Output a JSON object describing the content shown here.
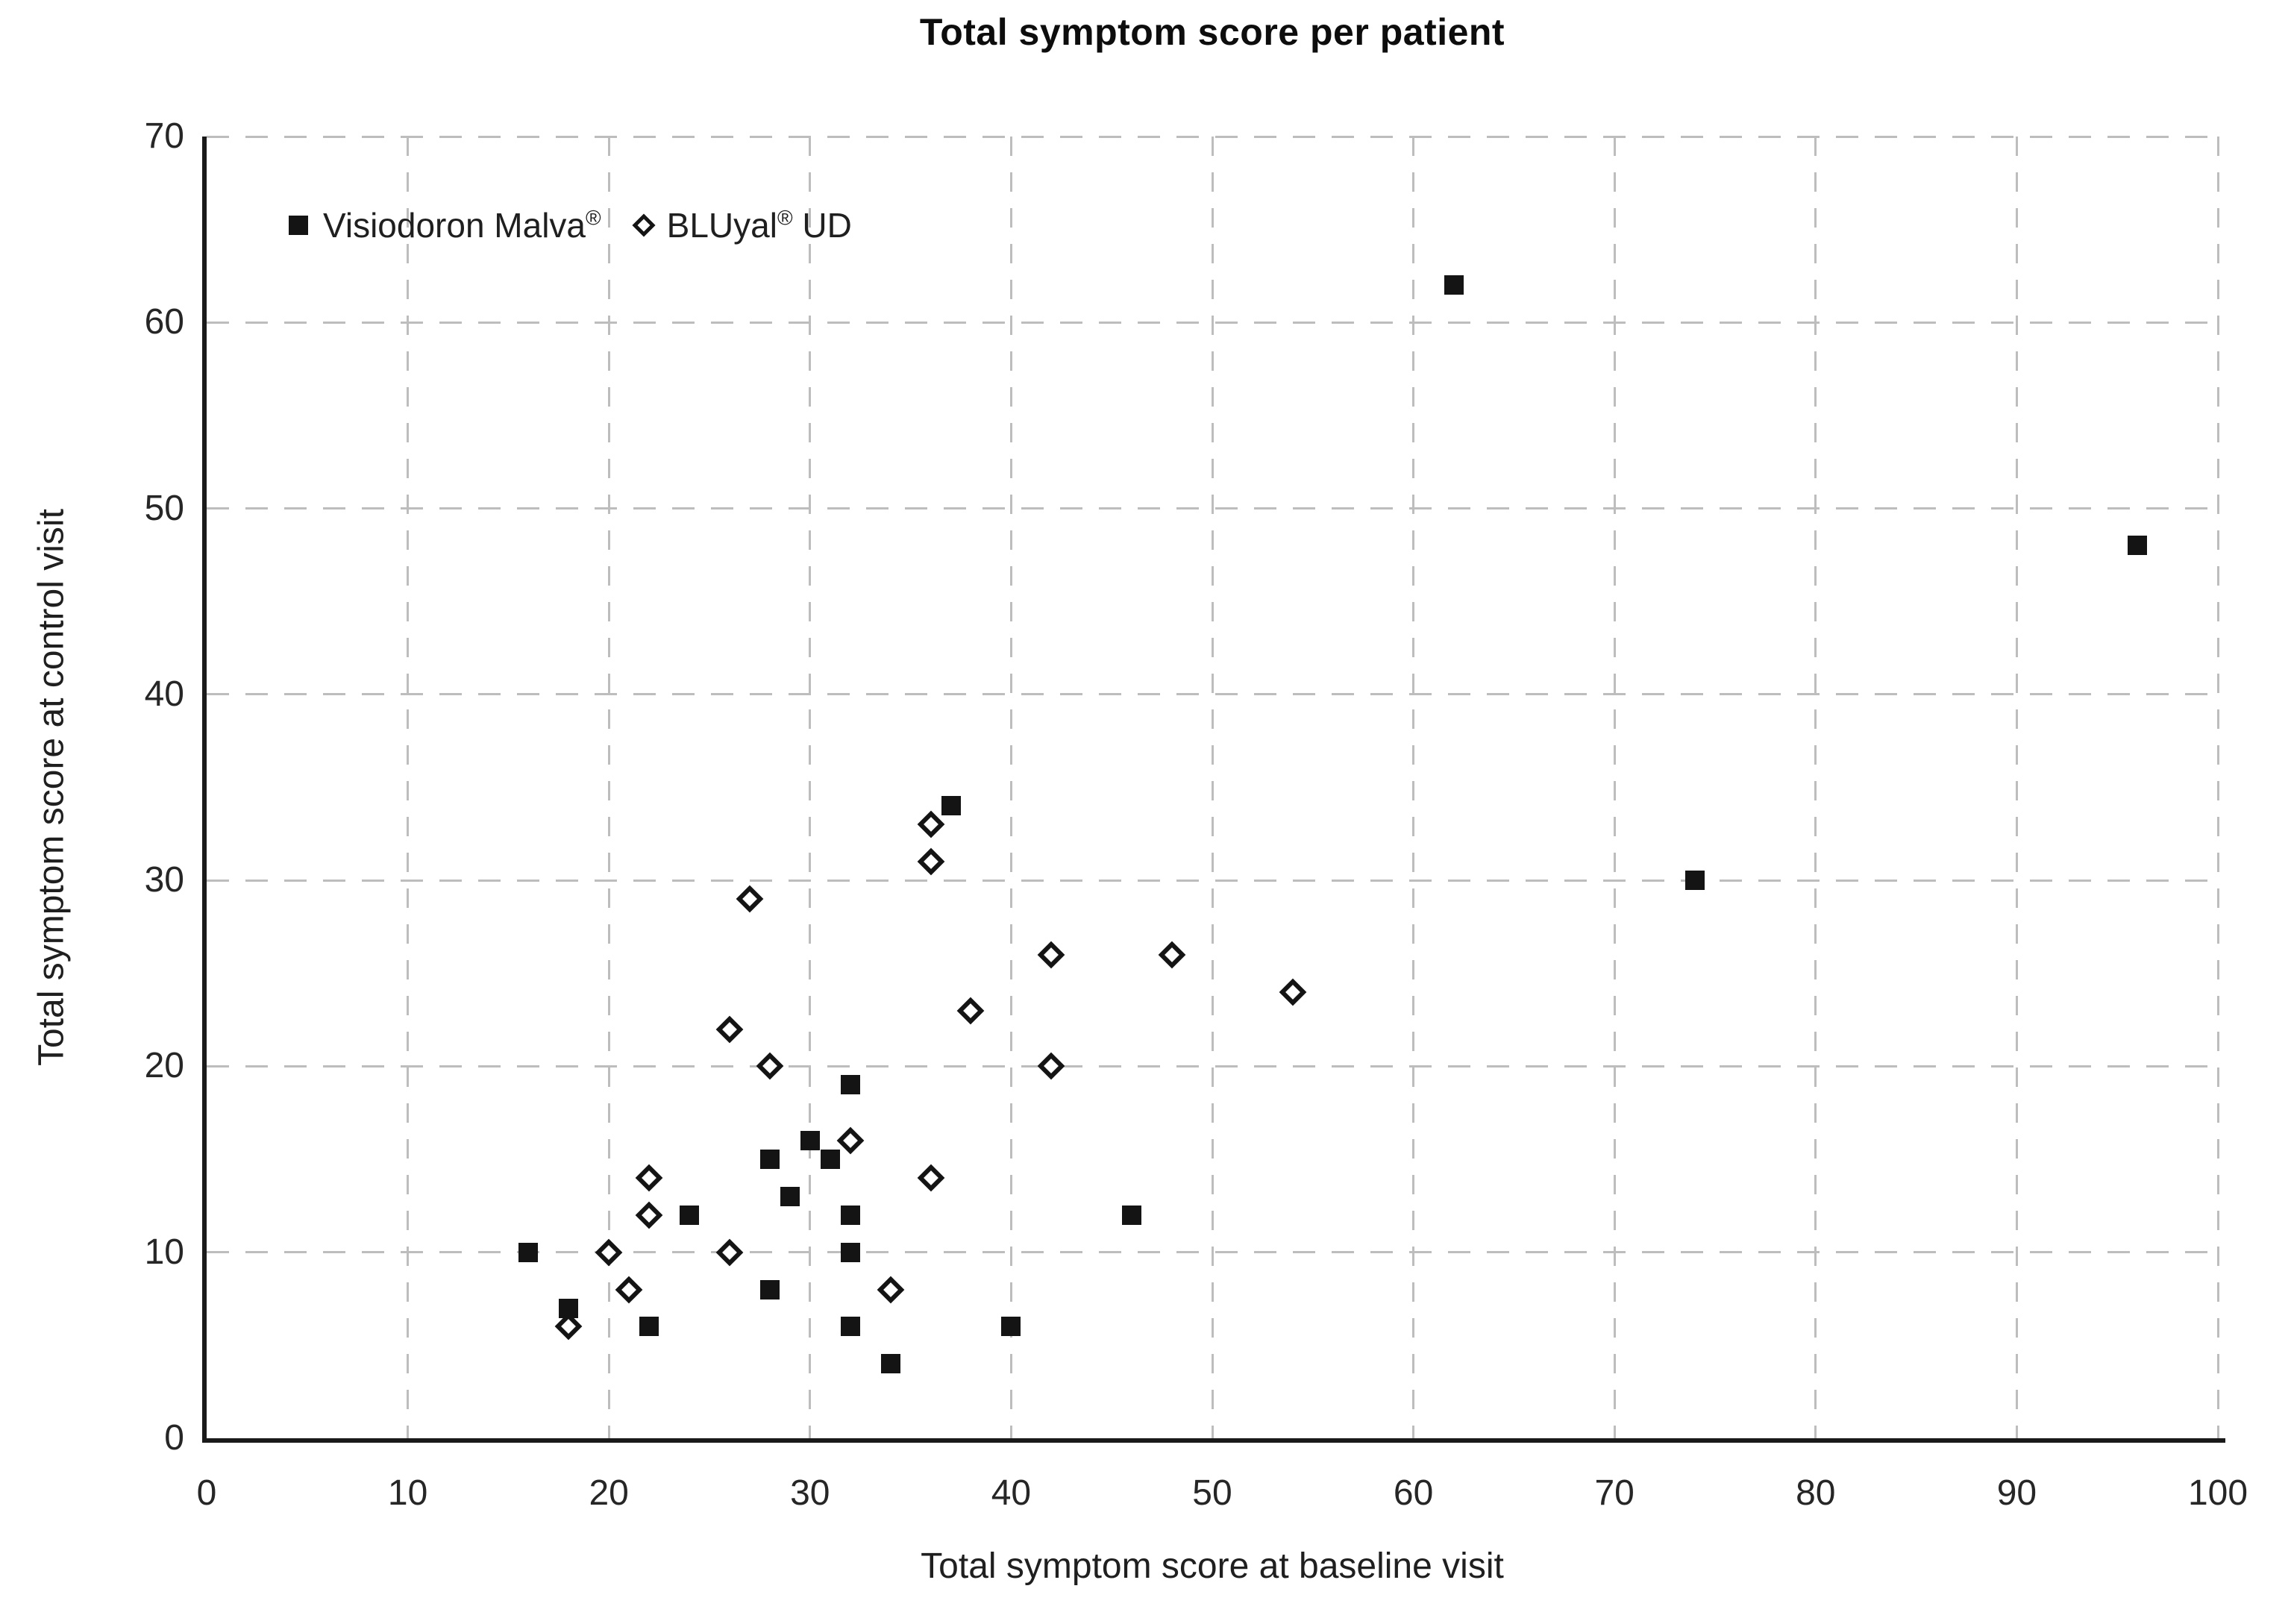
{
  "colors": {
    "background": "#ffffff",
    "marker": "#141414",
    "grid": "#bdbdbd",
    "axis": "#1a1a1a",
    "tick_text": "#262626",
    "title_text": "#0d0d0d"
  },
  "chart_data": {
    "type": "scatter",
    "title": "Total symptom score per patient",
    "xlabel": "Total symptom score at baseline visit",
    "ylabel": "Total symptom score at control visit",
    "xlim": [
      0,
      100
    ],
    "ylim": [
      0,
      70
    ],
    "x_ticks": [
      0,
      10,
      20,
      30,
      40,
      50,
      60,
      70,
      80,
      90,
      100
    ],
    "y_ticks": [
      0,
      10,
      20,
      30,
      40,
      50,
      60,
      70
    ],
    "grid": true,
    "gridline_style": "dashed",
    "legend_position": "top-left-inside",
    "series": [
      {
        "name": "Visiodoron Malva®",
        "marker": "filled-square",
        "points": [
          [
            16,
            10
          ],
          [
            18,
            7
          ],
          [
            22,
            6
          ],
          [
            24,
            12
          ],
          [
            28,
            8
          ],
          [
            28,
            15
          ],
          [
            29,
            13
          ],
          [
            30,
            16
          ],
          [
            31,
            15
          ],
          [
            32,
            6
          ],
          [
            32,
            10
          ],
          [
            32,
            12
          ],
          [
            32,
            19
          ],
          [
            34,
            4
          ],
          [
            37,
            34
          ],
          [
            40,
            6
          ],
          [
            46,
            12
          ],
          [
            62,
            62
          ],
          [
            74,
            30
          ],
          [
            96,
            48
          ]
        ]
      },
      {
        "name": "BLUyal® UD",
        "marker": "open-diamond",
        "points": [
          [
            18,
            6
          ],
          [
            20,
            10
          ],
          [
            21,
            8
          ],
          [
            22,
            12
          ],
          [
            22,
            14
          ],
          [
            26,
            10
          ],
          [
            26,
            22
          ],
          [
            27,
            29
          ],
          [
            28,
            20
          ],
          [
            32,
            16
          ],
          [
            34,
            8
          ],
          [
            36,
            14
          ],
          [
            36,
            31
          ],
          [
            36,
            33
          ],
          [
            38,
            23
          ],
          [
            42,
            20
          ],
          [
            42,
            26
          ],
          [
            48,
            26
          ],
          [
            54,
            24
          ]
        ]
      }
    ]
  }
}
